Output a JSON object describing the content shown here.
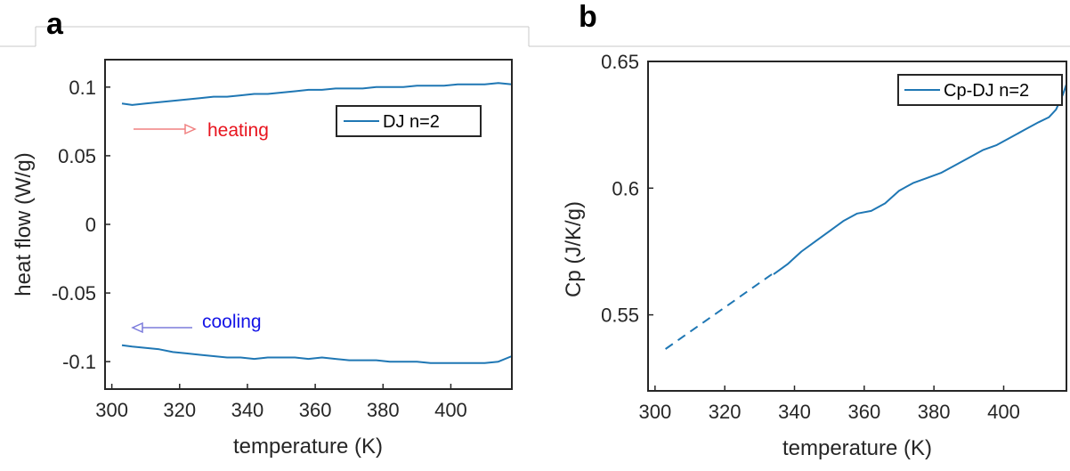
{
  "panels": {
    "a": "a",
    "b": "b"
  },
  "chart_data": [
    {
      "id": "a",
      "type": "line",
      "xlabel": "temperature (K)",
      "ylabel": "heat flow (W/g)",
      "xlim": [
        298,
        418
      ],
      "ylim": [
        -0.12,
        0.12
      ],
      "xticks": [
        300,
        320,
        340,
        360,
        380,
        400
      ],
      "yticks": [
        -0.1,
        -0.05,
        0,
        0.05,
        0.1
      ],
      "yticklabels": [
        "-0.1",
        "-0.05",
        "0",
        "0.05",
        "0.1"
      ],
      "legend": {
        "label": "DJ n=2",
        "placement": "top-right"
      },
      "color": "#1f77b4",
      "annotations": [
        {
          "text": "heating",
          "color": "#e8141e",
          "arrow": "right",
          "arrow_color": "#f08080"
        },
        {
          "text": "cooling",
          "color": "#1414e6",
          "arrow": "left",
          "arrow_color": "#7b7bdc"
        }
      ],
      "series": [
        {
          "name": "DJ n=2",
          "segment": "heating",
          "x": [
            303,
            306,
            310,
            314,
            318,
            322,
            326,
            330,
            334,
            338,
            342,
            346,
            350,
            354,
            358,
            362,
            366,
            370,
            374,
            378,
            382,
            386,
            390,
            394,
            398,
            402,
            406,
            410,
            414,
            418
          ],
          "y": [
            0.088,
            0.087,
            0.088,
            0.089,
            0.09,
            0.091,
            0.092,
            0.093,
            0.093,
            0.094,
            0.095,
            0.095,
            0.096,
            0.097,
            0.098,
            0.098,
            0.099,
            0.099,
            0.099,
            0.1,
            0.1,
            0.1,
            0.101,
            0.101,
            0.101,
            0.102,
            0.102,
            0.102,
            0.103,
            0.102
          ]
        },
        {
          "name": "DJ n=2",
          "segment": "cooling",
          "x": [
            303,
            306,
            310,
            314,
            318,
            322,
            326,
            330,
            334,
            338,
            342,
            346,
            350,
            354,
            358,
            362,
            366,
            370,
            374,
            378,
            382,
            386,
            390,
            394,
            398,
            402,
            406,
            410,
            414,
            418
          ],
          "y": [
            -0.088,
            -0.089,
            -0.09,
            -0.091,
            -0.093,
            -0.094,
            -0.095,
            -0.096,
            -0.097,
            -0.097,
            -0.098,
            -0.097,
            -0.097,
            -0.097,
            -0.098,
            -0.097,
            -0.098,
            -0.099,
            -0.099,
            -0.099,
            -0.1,
            -0.1,
            -0.1,
            -0.101,
            -0.101,
            -0.101,
            -0.101,
            -0.101,
            -0.1,
            -0.096
          ]
        }
      ]
    },
    {
      "id": "b",
      "type": "line",
      "xlabel": "temperature (K)",
      "ylabel": "Cp (J/K/g)",
      "xlim": [
        298,
        418
      ],
      "ylim": [
        0.52,
        0.65
      ],
      "xticks": [
        300,
        320,
        340,
        360,
        380,
        400
      ],
      "yticks": [
        0.55,
        0.6,
        0.65
      ],
      "yticklabels": [
        "0.55",
        "0.6",
        "0.65"
      ],
      "legend": {
        "label": "Cp-DJ n=2",
        "placement": "top-right"
      },
      "color": "#1f77b4",
      "series": [
        {
          "name": "Cp-DJ n=2",
          "segment": "extrapolated",
          "style": "dashed",
          "x": [
            303,
            334
          ],
          "y": [
            0.5365,
            0.5665
          ]
        },
        {
          "name": "Cp-DJ n=2",
          "segment": "measured",
          "style": "solid",
          "x": [
            334,
            338,
            342,
            346,
            350,
            354,
            358,
            362,
            366,
            370,
            374,
            378,
            382,
            386,
            390,
            394,
            398,
            402,
            406,
            410,
            413,
            415,
            417,
            418
          ],
          "y": [
            0.566,
            0.57,
            0.575,
            0.579,
            0.583,
            0.587,
            0.59,
            0.591,
            0.594,
            0.599,
            0.602,
            0.604,
            0.606,
            0.609,
            0.612,
            0.615,
            0.617,
            0.62,
            0.623,
            0.626,
            0.628,
            0.631,
            0.637,
            0.641
          ]
        }
      ]
    }
  ]
}
